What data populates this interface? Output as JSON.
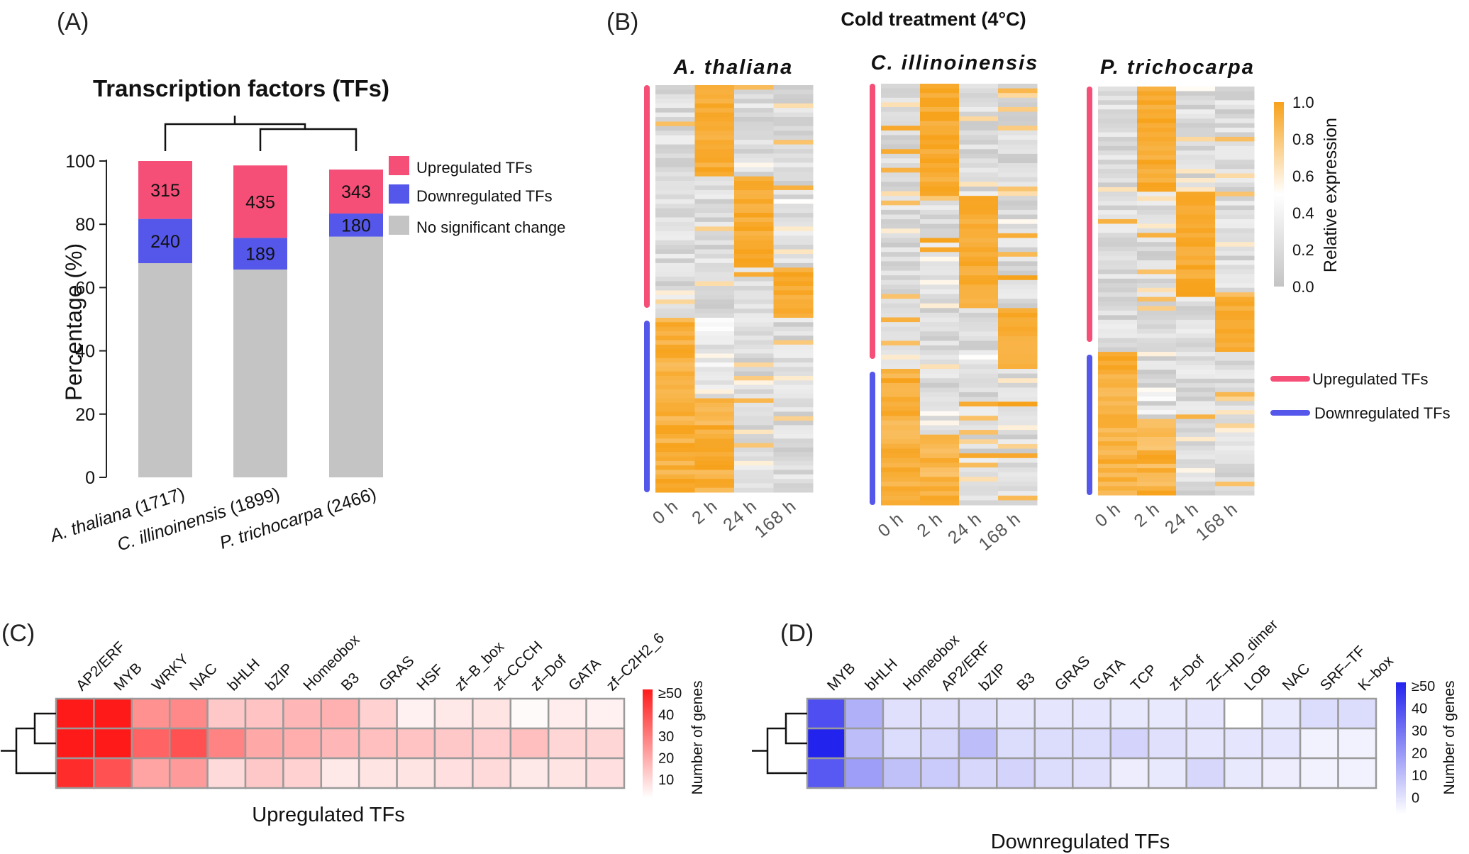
{
  "colors": {
    "upregulated": "#f54f78",
    "downregulated": "#5457ea",
    "no_change": "#c4c4c4",
    "heat_orange": "#f7a21b",
    "heat_red": "#ff1a1a",
    "heat_blue": "#2323ee",
    "grid": "#9a9a9a"
  },
  "panels": {
    "A": "(A)",
    "B": "(B)",
    "C": "(C)",
    "D": "(D)"
  },
  "chart_data": [
    {
      "type": "bar",
      "panel": "A",
      "title": "Transcription factors (TFs)",
      "ylabel": "Percentage (%)",
      "xlabel": "",
      "ylim": [
        0,
        100
      ],
      "yticks": [
        "0",
        "20",
        "40",
        "60",
        "80",
        "100"
      ],
      "ytick_values": [
        0,
        20,
        40,
        60,
        80,
        100
      ],
      "categories": [
        "A. thaliana (1717)",
        "C. illinoinensis (1899)",
        "P. trichocarpa (2466)"
      ],
      "stacked": true,
      "series": [
        {
          "name": "No significant change",
          "values": [
            67.7,
            65.7,
            76.1
          ]
        },
        {
          "name": "Downregulated TFs",
          "values": [
            14.0,
            10.0,
            7.3
          ],
          "labels": [
            "240",
            "189",
            "180"
          ]
        },
        {
          "name": "Upregulated  TFs",
          "values": [
            18.3,
            22.9,
            13.9
          ],
          "labels": [
            "315",
            "435",
            "343"
          ]
        }
      ],
      "legend_position": "right"
    },
    {
      "type": "heatmap",
      "panel": "B",
      "title": "Cold treatment (4°C)",
      "species": [
        "A. thaliana",
        "C. illinoinensis",
        "P. trichocarpa"
      ],
      "columns": [
        "0 h",
        "2 h",
        "24 h",
        "168 h"
      ],
      "colorbar": {
        "label": "Relative expression",
        "ticks": [
          "1.0",
          "0.8",
          "0.6",
          "0.4",
          "0.2",
          "0.0"
        ],
        "range": [
          0,
          1
        ]
      },
      "legend": [
        "Upregulated  TFs",
        "Downregulated TFs"
      ]
    },
    {
      "type": "heatmap",
      "panel": "C",
      "xlabel": "Upregulated  TFs",
      "columns": [
        "AP2/ERF",
        "MYB",
        "WRKY",
        "NAC",
        "bHLH",
        "bZIP",
        "Homeobox",
        "B3",
        "GRAS",
        "HSF",
        "zf–B_box",
        "zf–CCCH",
        "zf–Dof",
        "GATA",
        "zf–C2H2_6"
      ],
      "rows": 3,
      "values": [
        [
          50,
          50,
          24,
          26,
          12,
          13,
          16,
          17,
          10,
          3,
          5,
          6,
          1,
          4,
          3
        ],
        [
          50,
          50,
          34,
          38,
          27,
          19,
          18,
          16,
          14,
          13,
          12,
          11,
          14,
          9,
          9
        ],
        [
          46,
          38,
          20,
          22,
          8,
          12,
          10,
          5,
          6,
          6,
          7,
          8,
          5,
          6,
          7
        ]
      ],
      "colorbar": {
        "label": "Number of genes",
        "ticks": [
          "≥50",
          "40",
          "30",
          "20",
          "10"
        ],
        "range": [
          0,
          50
        ]
      }
    },
    {
      "type": "heatmap",
      "panel": "D",
      "xlabel": "Downregulated TFs",
      "columns": [
        "MYB",
        "bHLH",
        "Homeobox",
        "AP2/ERF",
        "bZIP",
        "B3",
        "GRAS",
        "GATA",
        "TCP",
        "zf–Dof",
        "ZF–HD_dimer",
        "LOB",
        "NAC",
        "SRF–TF",
        "K–box"
      ],
      "rows": 3,
      "values": [
        [
          40,
          18,
          7,
          7,
          7,
          6,
          6,
          6,
          5,
          5,
          6,
          0,
          5,
          8,
          8
        ],
        [
          50,
          15,
          8,
          9,
          15,
          8,
          8,
          8,
          10,
          7,
          6,
          6,
          6,
          3,
          3
        ],
        [
          38,
          22,
          14,
          12,
          9,
          10,
          8,
          7,
          4,
          5,
          9,
          5,
          4,
          3,
          3
        ]
      ],
      "colorbar": {
        "label": "Number of genes",
        "ticks": [
          "≥50",
          "40",
          "30",
          "20",
          "10",
          "0"
        ],
        "range": [
          0,
          50
        ]
      }
    }
  ]
}
